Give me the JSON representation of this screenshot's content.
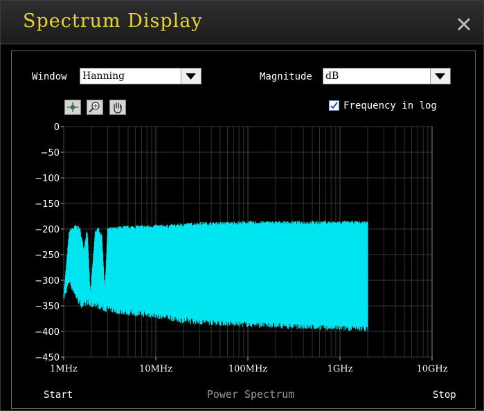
{
  "window": {
    "title": "Spectrum Display"
  },
  "controls": {
    "window_label": "Window",
    "window_value": "Hanning",
    "magnitude_label": "Magnitude",
    "magnitude_value": "dB",
    "frequency_log_label": "Frequency in log",
    "frequency_log_checked": true,
    "tools": [
      "crosshair-icon",
      "zoom-icon",
      "pan-hand-icon"
    ]
  },
  "chart_data": {
    "type": "line",
    "xscale": "log",
    "xlim": [
      1000000,
      10000000000
    ],
    "ylim": [
      -450,
      0
    ],
    "x_tick_labels": [
      "1MHz",
      "10MHz",
      "100MHz",
      "1GHz",
      "10GHz"
    ],
    "x_tick_values": [
      1000000,
      10000000,
      100000000,
      1000000000,
      10000000000
    ],
    "y_ticks": [
      0,
      -50,
      -100,
      -150,
      -200,
      -250,
      -300,
      -350,
      -400,
      -450
    ],
    "xlabel": "Power Spectrum",
    "x_start_label": "Start",
    "x_stop_label": "Stop",
    "grid": true,
    "line_color": "#00e5ef",
    "series": [
      {
        "x": [
          1000000,
          1150000,
          1350000,
          1500000,
          1650000,
          1800000,
          1950000,
          2200000,
          2400000,
          2600000,
          2800000,
          3000000,
          3500000,
          4000000,
          5000000,
          7000000,
          10000000,
          14000000,
          20000000,
          30000000,
          50000000,
          100000000,
          200000000,
          500000000,
          1000000000,
          2000000000
        ],
        "upper": [
          -330,
          -205,
          -195,
          -200,
          -240,
          -200,
          -330,
          -205,
          -200,
          -215,
          -320,
          -200,
          -200,
          -198,
          -197,
          -196,
          -195,
          -195,
          -192,
          -190,
          -190,
          -188,
          -188,
          -188,
          -188,
          -188
        ],
        "lower": [
          -335,
          -300,
          -330,
          -345,
          -350,
          -340,
          -350,
          -345,
          -350,
          -352,
          -355,
          -355,
          -358,
          -360,
          -362,
          -365,
          -368,
          -372,
          -378,
          -380,
          -382,
          -385,
          -387,
          -390,
          -392,
          -393
        ]
      }
    ]
  }
}
